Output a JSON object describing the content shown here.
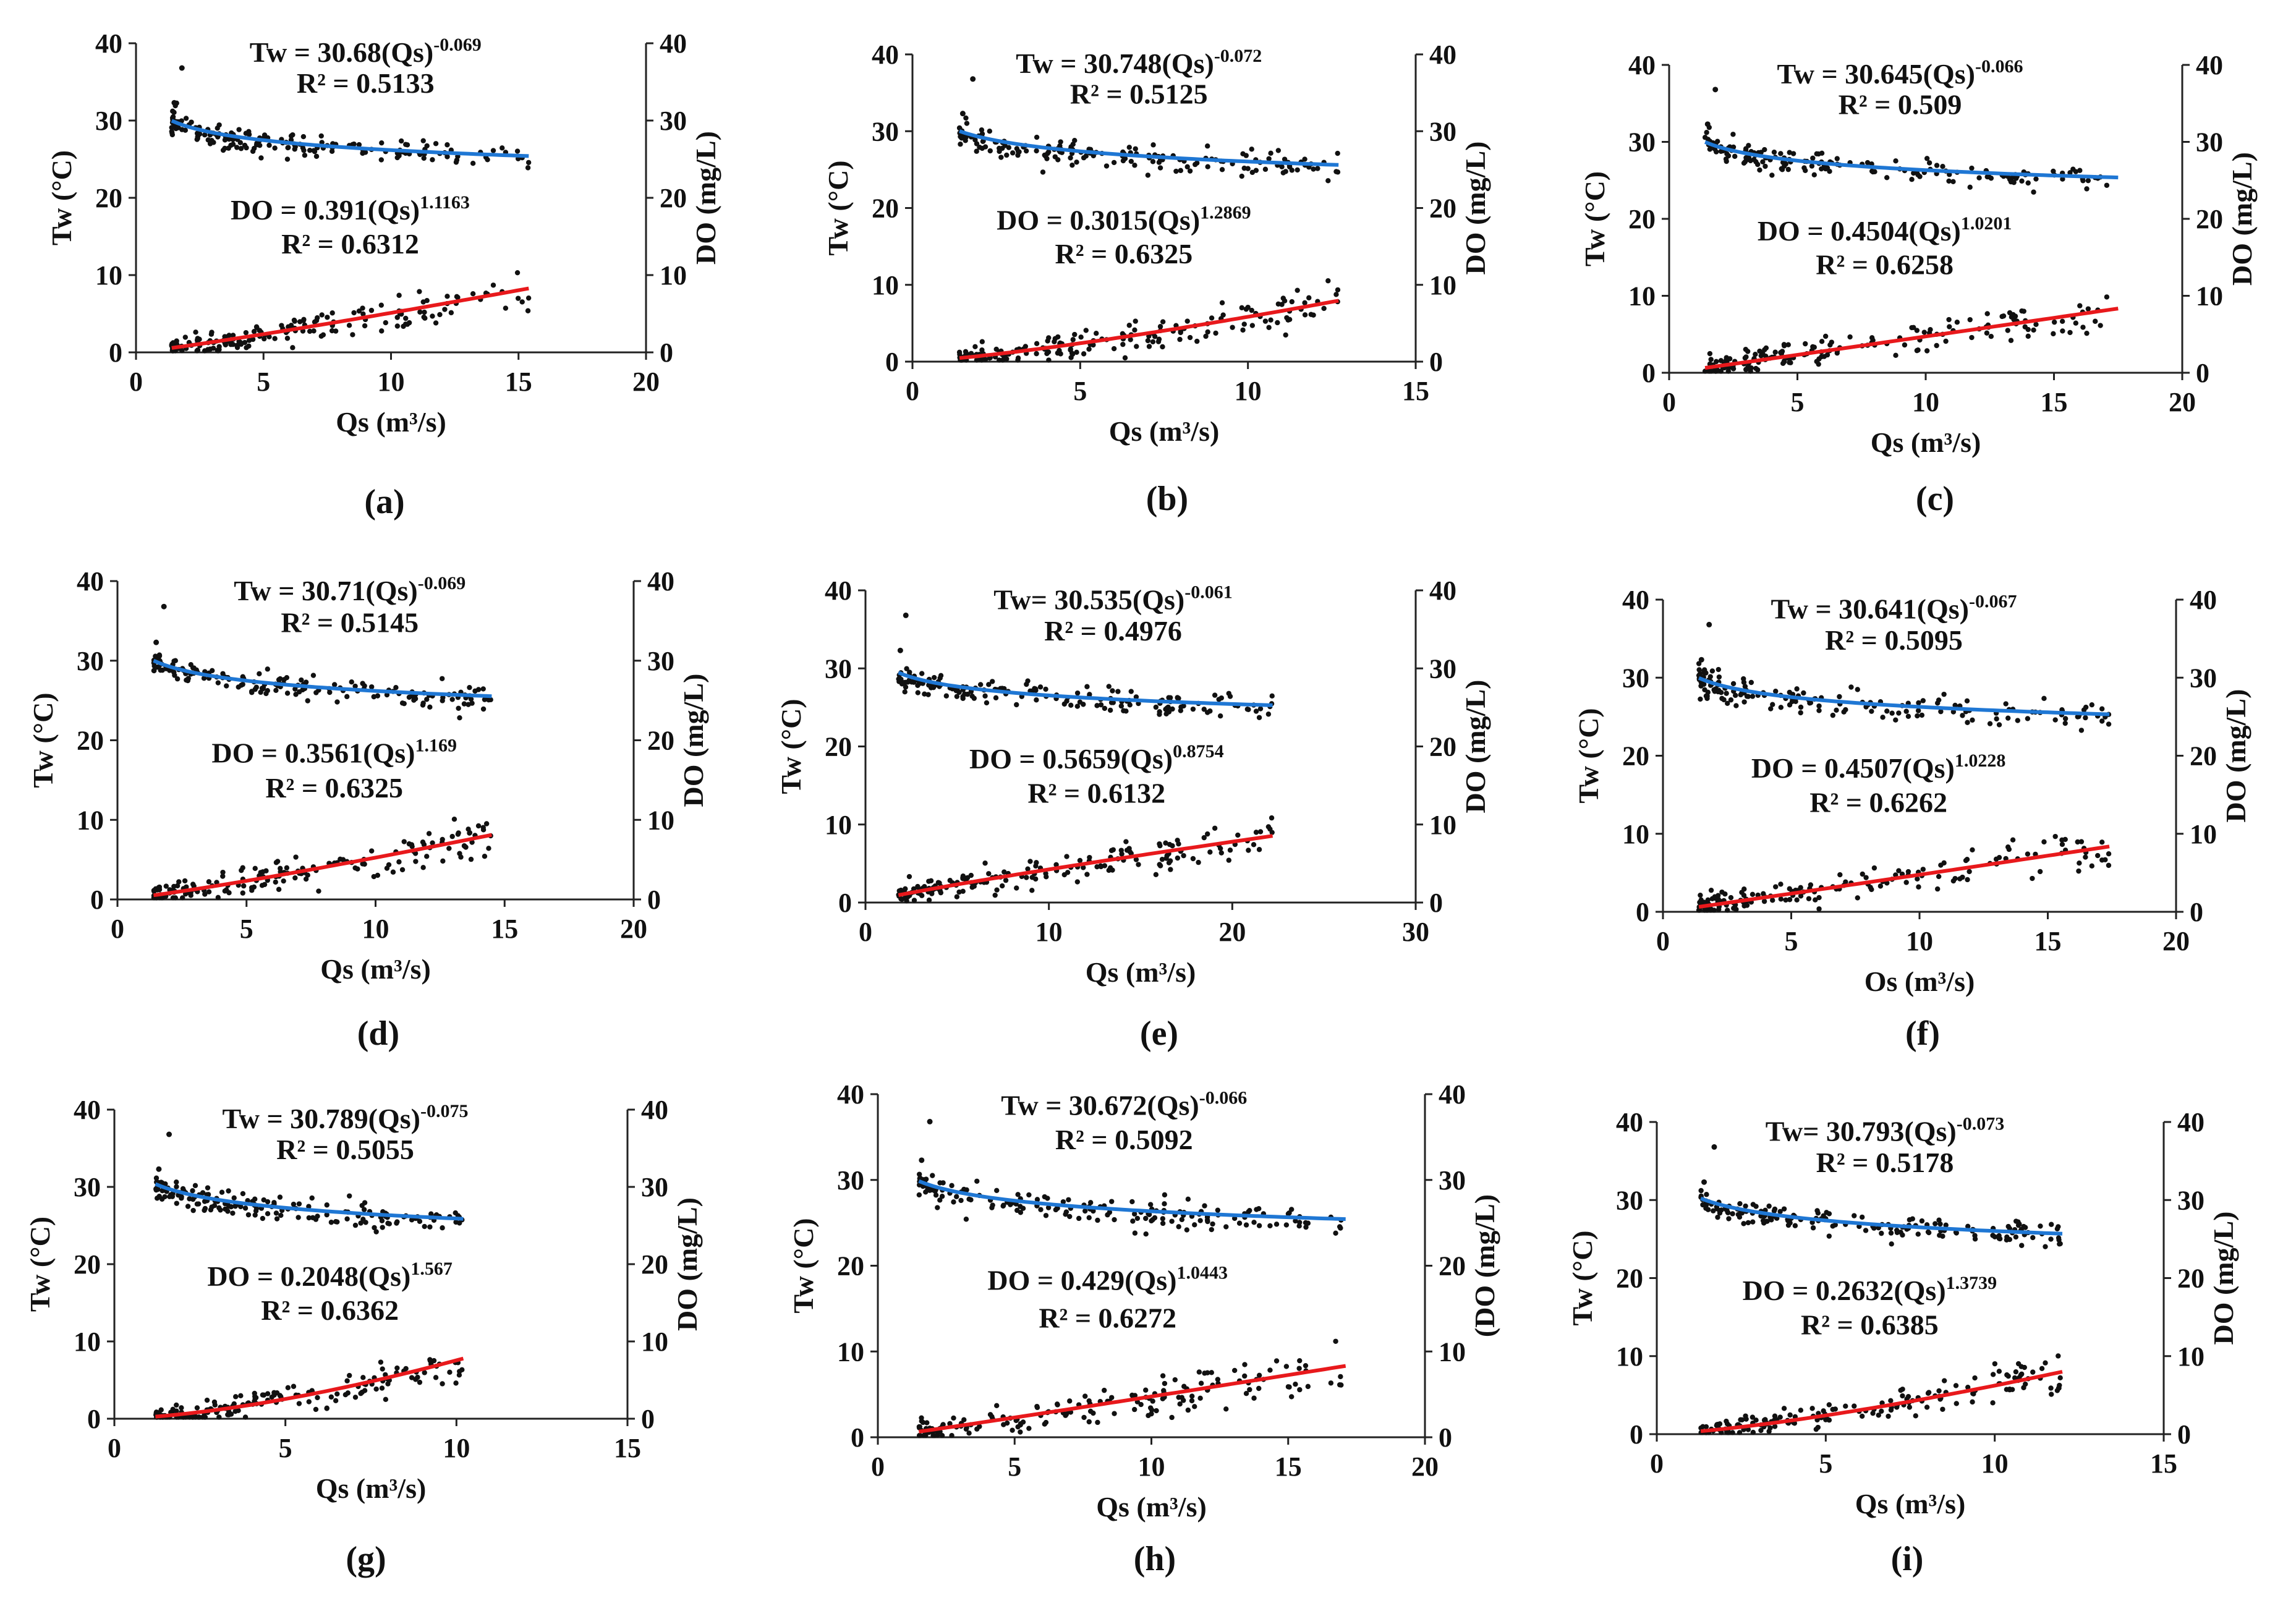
{
  "chart_data": [
    {
      "label": "(a)",
      "type": "scatter",
      "xlabel": "Qs (m³/s)",
      "ylabel": "Tw (°C)",
      "ylabel_right": "DO (mg/L)",
      "xlim": [
        0,
        20
      ],
      "xticks": [
        0,
        5,
        10,
        15,
        20
      ],
      "ylim": [
        0,
        40
      ],
      "yticks": [
        0,
        10,
        20,
        30,
        40
      ],
      "tw": {
        "a": 30.68,
        "b": -0.069,
        "eq": "Tw = 30.68(Qs)",
        "exp": "-0.069",
        "r2": "R² = 0.5133"
      },
      "do": {
        "a": 0.391,
        "b": 1.1163,
        "eq": "DO = 0.391(Qs)",
        "exp": "1.1163",
        "r2": "R² = 0.6312"
      },
      "x_range": [
        1.4,
        15.4
      ],
      "seed": 11,
      "colors": {
        "tw_fit": "#1f77d4",
        "do_fit": "#e8191c"
      }
    },
    {
      "label": "(b)",
      "type": "scatter",
      "xlabel": "Qs (m³/s)",
      "ylabel": "Tw (°C)",
      "ylabel_right": "DO (mg/L)",
      "xlim": [
        0,
        15
      ],
      "xticks": [
        0,
        5,
        10,
        15
      ],
      "ylim": [
        0,
        40
      ],
      "yticks": [
        0,
        10,
        20,
        30,
        40
      ],
      "tw": {
        "a": 30.748,
        "b": -0.072,
        "eq": "Tw = 30.748(Qs)",
        "exp": "-0.072",
        "r2": "R² = 0.5125"
      },
      "do": {
        "a": 0.3015,
        "b": 1.2869,
        "eq": "DO = 0.3015(Qs)",
        "exp": "1.2869",
        "r2": "R² = 0.6325"
      },
      "x_range": [
        1.4,
        12.7
      ],
      "seed": 23,
      "colors": {
        "tw_fit": "#1f77d4",
        "do_fit": "#e8191c"
      }
    },
    {
      "label": "(c)",
      "type": "scatter",
      "xlabel": "Qs (m³/s)",
      "ylabel": "Tw (°C)",
      "ylabel_right": "DO (mg/L)",
      "xlim": [
        0,
        20
      ],
      "xticks": [
        0,
        5,
        10,
        15,
        20
      ],
      "ylim": [
        0,
        40
      ],
      "yticks": [
        0,
        10,
        20,
        30,
        40
      ],
      "tw": {
        "a": 30.645,
        "b": -0.066,
        "eq": "Tw = 30.645(Qs)",
        "exp": "-0.066",
        "r2": "R² = 0.509"
      },
      "do": {
        "a": 0.4504,
        "b": 1.0201,
        "eq": "DO = 0.4504(Qs)",
        "exp": "1.0201",
        "r2": "R² = 0.6258"
      },
      "x_range": [
        1.4,
        17.5
      ],
      "seed": 37,
      "colors": {
        "tw_fit": "#1f77d4",
        "do_fit": "#e8191c"
      }
    },
    {
      "label": "(d)",
      "type": "scatter",
      "xlabel": "Qs (m³/s)",
      "ylabel": "Tw (°C)",
      "ylabel_right": "DO (mg/L)",
      "xlim": [
        0,
        20
      ],
      "xticks": [
        0,
        5,
        10,
        15,
        20
      ],
      "ylim": [
        0,
        40
      ],
      "yticks": [
        0,
        10,
        20,
        30,
        40
      ],
      "tw": {
        "a": 30.71,
        "b": -0.069,
        "eq": "Tw = 30.71(Qs)",
        "exp": "-0.069",
        "r2": "R² = 0.5145"
      },
      "do": {
        "a": 0.3561,
        "b": 1.169,
        "eq": "DO = 0.3561(Qs)",
        "exp": "1.169",
        "r2": "R² = 0.6325"
      },
      "x_range": [
        1.4,
        14.5
      ],
      "seed": 41,
      "colors": {
        "tw_fit": "#1f77d4",
        "do_fit": "#e8191c"
      }
    },
    {
      "label": "(e)",
      "type": "scatter",
      "xlabel": "Qs (m³/s)",
      "ylabel": "Tw (°C)",
      "ylabel_right": "DO (mg/L)",
      "xlim": [
        0,
        30
      ],
      "xticks": [
        0,
        10,
        20,
        30
      ],
      "ylim": [
        0,
        40
      ],
      "yticks": [
        0,
        10,
        20,
        30,
        40
      ],
      "tw": {
        "a": 30.535,
        "b": -0.061,
        "eq": "Tw= 30.535(Qs)",
        "exp": "-0.061",
        "r2": "R² = 0.4976"
      },
      "do": {
        "a": 0.5659,
        "b": 0.8754,
        "eq": "DO = 0.5659(Qs)",
        "exp": "0.8754",
        "r2": "R² = 0.6132"
      },
      "x_range": [
        1.8,
        22.2
      ],
      "seed": 53,
      "colors": {
        "tw_fit": "#1f77d4",
        "do_fit": "#e8191c"
      }
    },
    {
      "label": "(f)",
      "type": "scatter",
      "xlabel": "Os (m³/s)",
      "ylabel": "Tw (°C)",
      "ylabel_right": "DO (mg/L)",
      "xlim": [
        0,
        20
      ],
      "xticks": [
        0,
        5,
        10,
        15,
        20
      ],
      "ylim": [
        0,
        40
      ],
      "yticks": [
        0,
        10,
        20,
        30,
        40
      ],
      "tw": {
        "a": 30.641,
        "b": -0.067,
        "eq": "Tw = 30.641(Qs)",
        "exp": "-0.067",
        "r2": "R² = 0.5095"
      },
      "do": {
        "a": 0.4507,
        "b": 1.0228,
        "eq": "DO = 0.4507(Qs)",
        "exp": "1.0228",
        "r2": "R² = 0.6262"
      },
      "x_range": [
        1.4,
        17.4
      ],
      "seed": 67,
      "colors": {
        "tw_fit": "#1f77d4",
        "do_fit": "#e8191c"
      }
    },
    {
      "label": "(g)",
      "type": "scatter",
      "xlabel": "Qs (m³/s)",
      "ylabel": "Tw (°C)",
      "ylabel_right": "DO (mg/L)",
      "xlim": [
        0,
        15
      ],
      "xticks": [
        0,
        5,
        10,
        15
      ],
      "ylim": [
        0,
        40
      ],
      "yticks": [
        0,
        10,
        20,
        30,
        40
      ],
      "tw": {
        "a": 30.789,
        "b": -0.075,
        "eq": "Tw = 30.789(Qs)",
        "exp": "-0.075",
        "r2": "R² = 0.5055"
      },
      "do": {
        "a": 0.2048,
        "b": 1.567,
        "eq": "DO = 0.2048(Qs)",
        "exp": "1.567",
        "r2": "R² = 0.6362"
      },
      "x_range": [
        1.2,
        10.2
      ],
      "seed": 79,
      "colors": {
        "tw_fit": "#1f77d4",
        "do_fit": "#e8191c"
      }
    },
    {
      "label": "(h)",
      "type": "scatter",
      "xlabel": "Qs (m³/s)",
      "ylabel": "Tw (°C)",
      "ylabel_right": "(DO (mg/L)",
      "xlim": [
        0,
        20
      ],
      "xticks": [
        0,
        5,
        10,
        15,
        20
      ],
      "ylim": [
        0,
        40
      ],
      "yticks": [
        0,
        10,
        20,
        30,
        40
      ],
      "tw": {
        "a": 30.672,
        "b": -0.066,
        "eq": "Tw = 30.672(Qs)",
        "exp": "-0.066",
        "r2": "R² = 0.5092"
      },
      "do": {
        "a": 0.429,
        "b": 1.0443,
        "eq": "DO = 0.429(Qs)",
        "exp": "1.0443",
        "r2": "R² = 0.6272"
      },
      "x_range": [
        1.5,
        17.1
      ],
      "seed": 83,
      "colors": {
        "tw_fit": "#1f77d4",
        "do_fit": "#e8191c"
      }
    },
    {
      "label": "(i)",
      "type": "scatter",
      "xlabel": "Qs (m³/s)",
      "ylabel": "Tw (°C)",
      "ylabel_right": "DO (mg/L)",
      "xlim": [
        0,
        15
      ],
      "xticks": [
        0,
        5,
        10,
        15
      ],
      "ylim": [
        0,
        40
      ],
      "yticks": [
        0,
        10,
        20,
        30,
        40
      ],
      "tw": {
        "a": 30.793,
        "b": -0.073,
        "eq": "Tw= 30.793(Qs)",
        "exp": "-0.073",
        "r2": "R² = 0.5178"
      },
      "do": {
        "a": 0.2632,
        "b": 1.3739,
        "eq": "DO = 0.2632(Qs)",
        "exp": "1.3739",
        "r2": "R² = 0.6385"
      },
      "x_range": [
        1.3,
        12.0
      ],
      "seed": 97,
      "colors": {
        "tw_fit": "#1f77d4",
        "do_fit": "#e8191c"
      }
    }
  ]
}
